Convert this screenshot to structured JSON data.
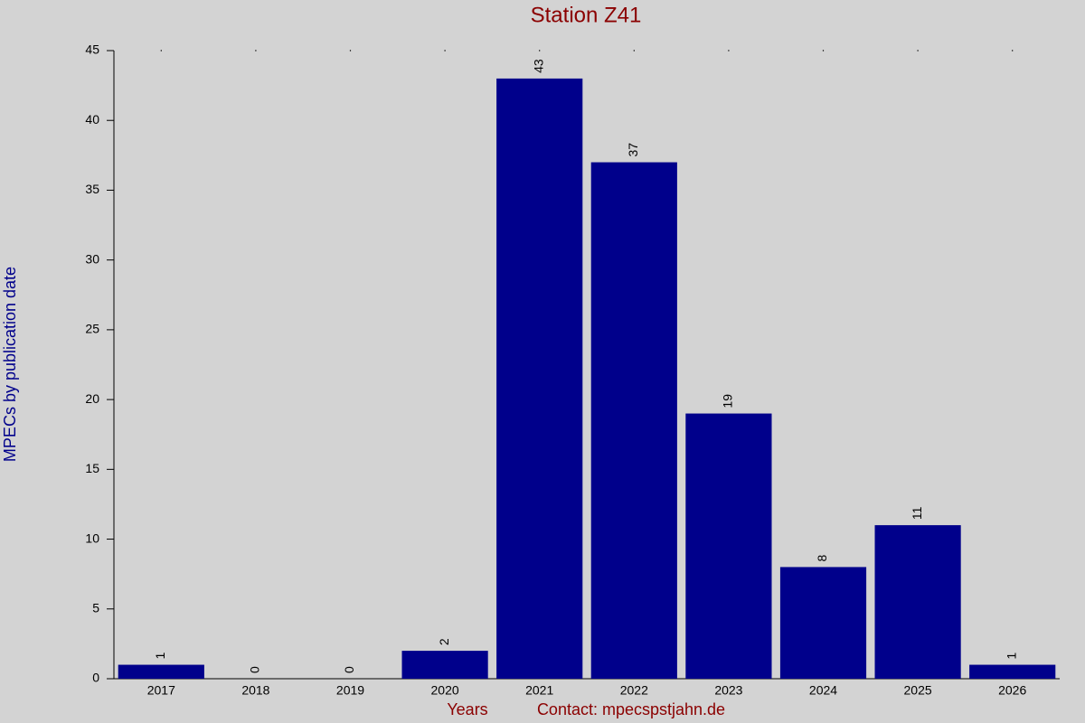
{
  "chart_data": {
    "type": "bar",
    "title": "Station Z41",
    "x_label": "Years",
    "y_label": "MPECs by publication date",
    "annotation": "Contact: mpecspstjahn.de",
    "categories": [
      "2017",
      "2018",
      "2019",
      "2020",
      "2021",
      "2022",
      "2023",
      "2024",
      "2025",
      "2026"
    ],
    "values": [
      1,
      0,
      0,
      2,
      43,
      37,
      19,
      8,
      11,
      1
    ],
    "color": "#00008b",
    "ylim": [
      0,
      45
    ],
    "yticks": [
      0,
      5,
      10,
      15,
      20,
      25,
      30,
      35,
      40,
      45
    ],
    "grid": false
  }
}
